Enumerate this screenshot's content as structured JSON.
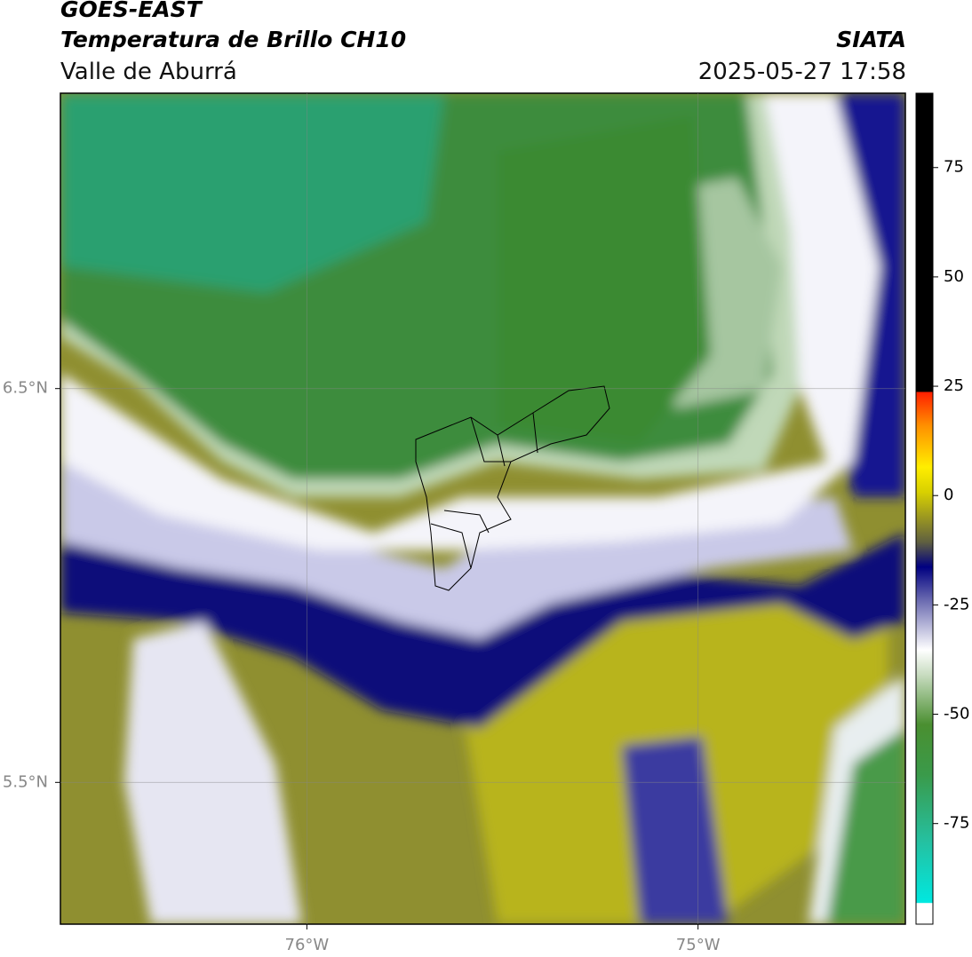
{
  "header": {
    "title": "GOES-EAST",
    "subtitle": "Temperatura de Brillo CH10",
    "region": "Valle de Aburrá",
    "source": "SIATA",
    "datetime": "2025-05-27 17:58"
  },
  "map": {
    "xlim": [
      -76.63,
      -74.47
    ],
    "ylim": [
      5.14,
      7.25
    ],
    "xticks": [
      {
        "value": -76,
        "label": "76°W"
      },
      {
        "value": -75,
        "label": "75°W"
      }
    ],
    "yticks": [
      {
        "value": 6.5,
        "label": "6.5°N"
      },
      {
        "value": 5.5,
        "label": "5.5°N"
      }
    ],
    "grid": true
  },
  "colorbar": {
    "lim": [
      -98,
      92
    ],
    "ticks": [
      75,
      50,
      25,
      0,
      -25,
      -50,
      -75
    ]
  }
}
